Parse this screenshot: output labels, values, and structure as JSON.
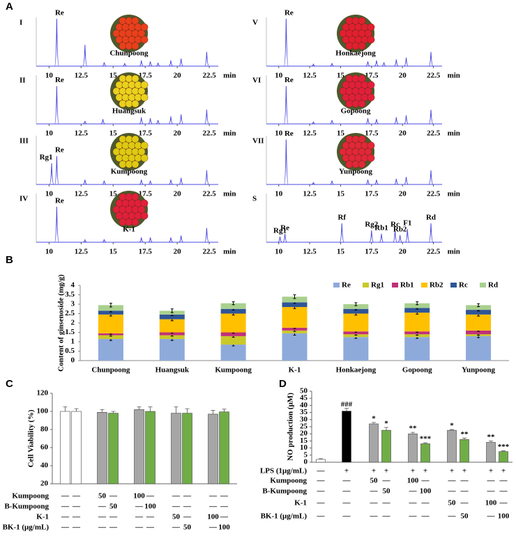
{
  "panel_a_label": "A",
  "chart_data": [
    {
      "type": "chromatogram",
      "id_label": "I",
      "sample": "Chunpoong",
      "photo_color": "#e8401c",
      "color": "#4a4ae0",
      "x_unit": "min",
      "xlim": [
        9,
        23.2
      ],
      "ylim": [
        0,
        100
      ],
      "xticks": [
        10,
        12.5,
        15,
        17.5,
        20,
        22.5
      ],
      "x": [
        10.6,
        12.8,
        14.3,
        15.9,
        17.2,
        17.9,
        18.5,
        19.5,
        20.3,
        22.3
      ],
      "values": [
        100,
        45,
        8,
        6,
        12,
        10,
        7,
        12,
        16,
        30
      ],
      "peak_labels": [
        {
          "x": 10.6,
          "label": "Re"
        }
      ]
    },
    {
      "type": "chromatogram",
      "id_label": "II",
      "sample": "Huangsuk",
      "photo_color": "#e8d21c",
      "color": "#4a4ae0",
      "x_unit": "min",
      "xlim": [
        9,
        23.2
      ],
      "ylim": [
        0,
        100
      ],
      "xticks": [
        10,
        12.5,
        15,
        17.5,
        20,
        22.5
      ],
      "x": [
        10.6,
        12.8,
        14.2,
        17.2,
        17.9,
        18.5,
        19.5,
        20.3,
        22.3
      ],
      "values": [
        80,
        6,
        10,
        14,
        12,
        8,
        16,
        20,
        30
      ],
      "peak_labels": [
        {
          "x": 10.6,
          "label": "Re"
        }
      ]
    },
    {
      "type": "chromatogram",
      "id_label": "III",
      "sample": "Kumpoong",
      "photo_color": "#dccb12",
      "color": "#4a4ae0",
      "x_unit": "min",
      "xlim": [
        9,
        23.2
      ],
      "ylim": [
        0,
        100
      ],
      "xticks": [
        10,
        12.5,
        15,
        17.5,
        20,
        22.5
      ],
      "x": [
        10.2,
        10.6,
        12.8,
        14.3,
        17.2,
        17.9,
        19.5,
        20.3,
        22.3
      ],
      "values": [
        45,
        60,
        10,
        8,
        10,
        8,
        10,
        14,
        30
      ],
      "peak_labels": [
        {
          "x": 10.2,
          "label": "Rg1"
        },
        {
          "x": 10.6,
          "label": "Re"
        }
      ]
    },
    {
      "type": "chromatogram",
      "id_label": "IV",
      "sample": "K-1",
      "photo_color": "#e0203a",
      "color": "#4a4ae0",
      "x_unit": "min",
      "xlim": [
        9,
        23.2
      ],
      "ylim": [
        0,
        100
      ],
      "xticks": [
        10,
        12.5,
        15,
        17.5,
        20,
        22.5
      ],
      "x": [
        10.6,
        12.8,
        14.3,
        17.2,
        17.9,
        19.5,
        20.3,
        22.3
      ],
      "values": [
        75,
        5,
        6,
        10,
        10,
        10,
        14,
        30
      ],
      "peak_labels": [
        {
          "x": 10.6,
          "label": "Re"
        }
      ]
    },
    {
      "type": "chromatogram",
      "id_label": "V",
      "sample": "Honkaejong",
      "photo_color": "#e02030",
      "color": "#4a4ae0",
      "x_unit": "min",
      "xlim": [
        9,
        23.2
      ],
      "ylim": [
        0,
        100
      ],
      "xticks": [
        10,
        12.5,
        15,
        17.5,
        20,
        22.5
      ],
      "x": [
        10.6,
        12.8,
        14.3,
        17.2,
        17.9,
        18.5,
        19.5,
        20.3,
        22.3
      ],
      "values": [
        100,
        4,
        6,
        10,
        12,
        8,
        14,
        18,
        30
      ],
      "peak_labels": [
        {
          "x": 10.6,
          "label": "Re"
        }
      ]
    },
    {
      "type": "chromatogram",
      "id_label": "VI",
      "sample": "Gopoong",
      "photo_color": "#e0203a",
      "color": "#4a4ae0",
      "x_unit": "min",
      "xlim": [
        9,
        23.2
      ],
      "ylim": [
        0,
        100
      ],
      "xticks": [
        10,
        12.5,
        15,
        17.5,
        20,
        22.5
      ],
      "x": [
        10.6,
        12.8,
        14.3,
        17.2,
        17.9,
        19.5,
        20.3,
        22.3
      ],
      "values": [
        80,
        4,
        8,
        12,
        10,
        14,
        18,
        30
      ],
      "peak_labels": [
        {
          "x": 10.6,
          "label": "Re"
        }
      ]
    },
    {
      "type": "chromatogram",
      "id_label": "VII",
      "sample": "Yunpoong",
      "photo_color": "#e02838",
      "color": "#4a4ae0",
      "x_unit": "min",
      "xlim": [
        9,
        23.2
      ],
      "ylim": [
        0,
        100
      ],
      "xticks": [
        10,
        12.5,
        15,
        17.5,
        20,
        22.5
      ],
      "x": [
        10.6,
        12.8,
        14.3,
        17.2,
        17.9,
        19.5,
        20.3,
        22.3
      ],
      "values": [
        95,
        4,
        8,
        10,
        10,
        12,
        16,
        30
      ],
      "peak_labels": [
        {
          "x": 10.6,
          "label": "Re"
        }
      ]
    },
    {
      "type": "chromatogram",
      "id_label": "S",
      "color": "#4a4ae0",
      "x_unit": "min",
      "xlim": [
        9,
        23.2
      ],
      "ylim": [
        0,
        100
      ],
      "xticks": [
        10,
        12.5,
        15,
        17.5,
        20,
        22.5
      ],
      "x": [
        10.1,
        10.5,
        15.1,
        17.5,
        18.3,
        19.4,
        19.8,
        20.4,
        22.3
      ],
      "values": [
        12,
        18,
        40,
        25,
        18,
        25,
        15,
        28,
        40
      ],
      "peak_labels": [
        {
          "x": 10.1,
          "label": "Rg1"
        },
        {
          "x": 10.5,
          "label": "Re"
        },
        {
          "x": 15.1,
          "label": "Rf"
        },
        {
          "x": 17.5,
          "label": "Rg2"
        },
        {
          "x": 18.3,
          "label": "Rb1"
        },
        {
          "x": 19.4,
          "label": "Rc"
        },
        {
          "x": 19.8,
          "label": "Rb2"
        },
        {
          "x": 20.4,
          "label": "F1"
        },
        {
          "x": 22.3,
          "label": "Rd"
        }
      ]
    },
    {
      "type": "stacked_bar",
      "panel": "B",
      "ylabel": "Content of ginsenoside (mg/g)",
      "ylim": [
        0,
        4
      ],
      "yticks": [
        0,
        0.5,
        1,
        1.5,
        2,
        2.5,
        3,
        3.5,
        4
      ],
      "categories": [
        "Chunpoong",
        "Huangsuk",
        "Kumpoong",
        "K-1",
        "Honkaejong",
        "Gopoong",
        "Yunpoong"
      ],
      "series": [
        {
          "name": "Re",
          "color": "#8eaadb",
          "values": [
            1.15,
            1.15,
            0.85,
            1.45,
            1.25,
            1.25,
            1.3
          ],
          "errors": [
            0.08,
            0.08,
            0.07,
            0.1,
            0.07,
            0.07,
            0.08
          ]
        },
        {
          "name": "Rg1",
          "color": "#c9c92a",
          "values": [
            0.2,
            0.2,
            0.45,
            0.15,
            0.15,
            0.15,
            0.1
          ],
          "errors": [
            0.05,
            0.05,
            0.06,
            0.05,
            0.05,
            0.05,
            0.05
          ]
        },
        {
          "name": "Rb1",
          "color": "#c0307a",
          "values": [
            0.1,
            0.15,
            0.2,
            0.15,
            0.15,
            0.15,
            0.2
          ],
          "errors": [
            0.05,
            0.05,
            0.05,
            0.05,
            0.05,
            0.05,
            0.05
          ]
        },
        {
          "name": "Rb2",
          "color": "#ffc000",
          "values": [
            1.0,
            0.7,
            1.0,
            1.1,
            0.95,
            1.0,
            0.85
          ],
          "errors": [
            0.08,
            0.08,
            0.08,
            0.08,
            0.08,
            0.08,
            0.08
          ]
        },
        {
          "name": "Rc",
          "color": "#2f5597",
          "values": [
            0.2,
            0.25,
            0.25,
            0.25,
            0.25,
            0.25,
            0.25
          ],
          "errors": [
            0.06,
            0.06,
            0.06,
            0.06,
            0.06,
            0.06,
            0.06
          ]
        },
        {
          "name": "Rd",
          "color": "#a9d08e",
          "values": [
            0.3,
            0.2,
            0.3,
            0.3,
            0.25,
            0.25,
            0.25
          ],
          "errors": [
            0.1,
            0.1,
            0.08,
            0.1,
            0.08,
            0.08,
            0.08
          ]
        }
      ]
    },
    {
      "type": "bar",
      "panel": "C",
      "ylabel": "Cell Viability  (%)",
      "ylim": [
        20,
        120
      ],
      "yticks": [
        20,
        40,
        60,
        80,
        100,
        120
      ],
      "values": [
        100,
        100,
        99,
        98,
        102,
        100,
        98,
        98,
        97,
        99.5
      ],
      "errors": [
        5,
        3,
        3,
        2,
        3,
        5,
        7,
        5,
        4,
        3
      ],
      "colors": [
        "#ffffff",
        "#ffffff",
        "#a6a6a6",
        "#70ad47",
        "#a6a6a6",
        "#70ad47",
        "#a6a6a6",
        "#70ad47",
        "#a6a6a6",
        "#70ad47"
      ],
      "treatment_rows": [
        {
          "label": "Kumpoong",
          "cells": [
            "—",
            "—",
            "50",
            "—",
            "100",
            "—",
            "—",
            "—",
            "—",
            "—"
          ]
        },
        {
          "label": "B-Kumpoong",
          "cells": [
            "—",
            "—",
            "—",
            "50",
            "—",
            "100",
            "—",
            "—",
            "—",
            "—"
          ]
        },
        {
          "label": "K-1",
          "cells": [
            "—",
            "—",
            "—",
            "—",
            "—",
            "—",
            "50",
            "—",
            "100",
            "—"
          ]
        },
        {
          "label": "BK-1 (μg/mL)",
          "cells": [
            "—",
            "—",
            "—",
            "—",
            "—",
            "—",
            "—",
            "50",
            "—",
            "100"
          ]
        }
      ]
    },
    {
      "type": "bar",
      "panel": "D",
      "ylabel": "NO production (μM)",
      "ylim": [
        0,
        50
      ],
      "yticks": [
        0,
        5,
        10,
        15,
        20,
        25,
        30,
        35,
        40,
        45,
        50
      ],
      "values": [
        2,
        36,
        27,
        22.5,
        20,
        13,
        22.5,
        16,
        14,
        7.5
      ],
      "errors": [
        0.5,
        2,
        1,
        2,
        1,
        0.7,
        0.5,
        1,
        1,
        0.5
      ],
      "colors": [
        "#ffffff",
        "#000000",
        "#a6a6a6",
        "#70ad47",
        "#a6a6a6",
        "#70ad47",
        "#a6a6a6",
        "#70ad47",
        "#a6a6a6",
        "#70ad47"
      ],
      "annotations": [
        null,
        "###",
        "*",
        "*",
        "**",
        "***",
        "*",
        "**",
        "**",
        "***"
      ],
      "treatment_rows": [
        {
          "label": "LPS (1μg/mL)",
          "cells": [
            "—",
            "+",
            "+",
            "+",
            "+",
            "+",
            "+",
            "+",
            "+",
            "+"
          ]
        },
        {
          "label": "Kumpoong",
          "cells": [
            "—",
            "—",
            "50",
            "—",
            "100",
            "—",
            "—",
            "—",
            "—",
            "—"
          ]
        },
        {
          "label": "B-Kumpoong",
          "cells": [
            "—",
            "—",
            "—",
            "50",
            "—",
            "100",
            "—",
            "—",
            "—",
            "—"
          ]
        },
        {
          "label": "K-1",
          "cells": [
            "—",
            "—",
            "—",
            "—",
            "—",
            "—",
            "50",
            "—",
            "100",
            "—"
          ]
        },
        {
          "label": "BK-1 (μg/mL)",
          "cells": [
            "—",
            "—",
            "—",
            "—",
            "—",
            "—",
            "—",
            "50",
            "—",
            "100"
          ]
        }
      ]
    }
  ]
}
